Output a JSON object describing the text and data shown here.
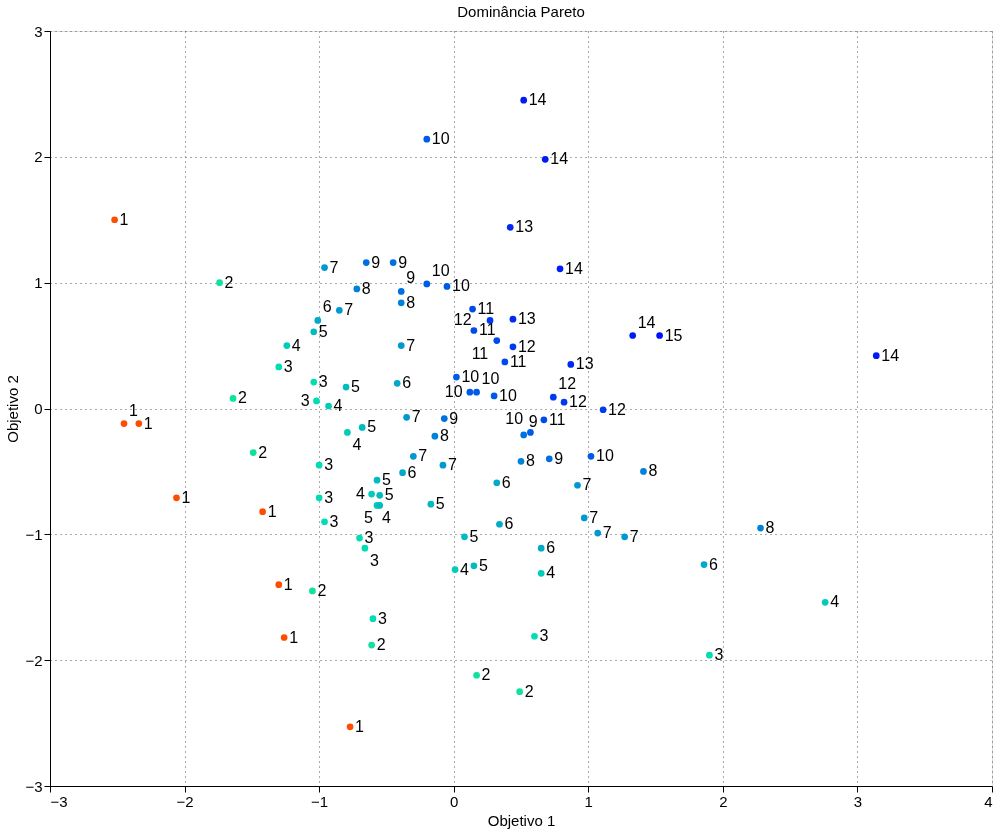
{
  "chart_data": {
    "type": "scatter",
    "title": "Dominância Pareto",
    "xlabel": "Objetivo 1",
    "ylabel": "Objetivo 2",
    "xlim": [
      -3,
      4
    ],
    "ylim": [
      -3,
      3
    ],
    "xticks": [
      -3,
      -2,
      -1,
      0,
      1,
      2,
      3,
      4
    ],
    "yticks": [
      -3,
      -2,
      -1,
      0,
      1,
      2,
      3
    ],
    "grid": true,
    "marker": "circle",
    "series": [
      {
        "name": "1",
        "color": "#ff4d00",
        "x": [
          -2.52,
          -2.45,
          -2.34,
          -2.06,
          -1.42,
          -1.3,
          -1.26,
          -0.77
        ],
        "values": [
          1.5,
          -0.12,
          -0.12,
          -0.71,
          -0.82,
          -1.4,
          -1.82,
          -2.53
        ]
      },
      {
        "name": "2",
        "color": "#10e0a0",
        "x": [
          -1.74,
          -1.64,
          -1.49,
          -1.05,
          -0.61,
          0.17,
          0.49
        ],
        "values": [
          1.0,
          0.08,
          -0.35,
          -1.45,
          -1.88,
          -2.12,
          -2.25
        ]
      },
      {
        "name": "3",
        "color": "#00dcb4",
        "x": [
          -1.3,
          -1.04,
          -1.02,
          -1.0,
          -1.0,
          -0.96,
          -0.7,
          -0.66,
          -0.6,
          0.6,
          1.9
        ],
        "values": [
          0.33,
          0.21,
          0.06,
          -0.45,
          -0.71,
          -0.9,
          -1.03,
          -1.11,
          -1.67,
          -1.81,
          -1.96
        ]
      },
      {
        "name": "4",
        "color": "#00ccb8",
        "x": [
          -1.24,
          -0.93,
          -0.79,
          -0.61,
          -0.57,
          0.01,
          0.65,
          2.76
        ],
        "values": [
          0.5,
          0.02,
          -0.19,
          -0.68,
          -0.77,
          -1.28,
          -1.31,
          -1.54
        ]
      },
      {
        "name": "5",
        "color": "#00bcc0",
        "x": [
          -1.04,
          -0.8,
          -0.68,
          -0.57,
          -0.55,
          -0.55,
          -0.17,
          0.08,
          0.15
        ],
        "values": [
          0.61,
          0.17,
          -0.15,
          -0.57,
          -0.69,
          -0.77,
          -0.76,
          -1.02,
          -1.25
        ]
      },
      {
        "name": "6",
        "color": "#00aac8",
        "x": [
          -1.01,
          -0.42,
          -0.38,
          0.32,
          0.34,
          0.65,
          1.86
        ],
        "values": [
          0.7,
          0.2,
          -0.51,
          -0.59,
          -0.92,
          -1.11,
          -1.24
        ]
      },
      {
        "name": "7",
        "color": "#0098d0",
        "x": [
          -0.96,
          -0.85,
          -0.39,
          -0.35,
          -0.3,
          -0.08,
          0.92,
          0.97,
          1.07,
          1.27
        ],
        "values": [
          1.12,
          0.78,
          0.5,
          -0.07,
          -0.38,
          -0.45,
          -0.61,
          -0.87,
          -0.99,
          -1.02
        ]
      },
      {
        "name": "8",
        "color": "#0082d8",
        "x": [
          -0.72,
          -0.39,
          -0.14,
          0.5,
          1.41,
          2.28
        ],
        "values": [
          0.95,
          0.84,
          -0.22,
          -0.42,
          -0.5,
          -0.95
        ]
      },
      {
        "name": "9",
        "color": "#0070e0",
        "x": [
          -0.65,
          -0.45,
          -0.39,
          -0.07,
          0.52,
          0.71
        ],
        "values": [
          1.16,
          1.16,
          0.93,
          -0.08,
          -0.21,
          -0.4
        ]
      },
      {
        "name": "10",
        "color": "#005ae8",
        "x": [
          -0.2,
          -0.2,
          -0.05,
          0.02,
          0.12,
          0.17,
          0.3,
          0.57,
          1.02
        ],
        "values": [
          2.14,
          0.99,
          0.97,
          0.25,
          0.13,
          0.13,
          0.1,
          -0.19,
          -0.38
        ]
      },
      {
        "name": "11",
        "color": "#004aec",
        "x": [
          0.14,
          0.15,
          0.32,
          0.38,
          0.67
        ],
        "values": [
          0.79,
          0.62,
          0.54,
          0.37,
          -0.09
        ]
      },
      {
        "name": "12",
        "color": "#003af0",
        "x": [
          0.27,
          0.44,
          0.74,
          0.82,
          1.11
        ],
        "values": [
          0.7,
          0.49,
          0.09,
          0.05,
          -0.01
        ]
      },
      {
        "name": "13",
        "color": "#002af4",
        "x": [
          0.42,
          0.44,
          0.87
        ],
        "values": [
          1.44,
          0.71,
          0.35
        ]
      },
      {
        "name": "14",
        "color": "#001af8",
        "x": [
          0.52,
          0.68,
          0.79,
          1.33,
          3.14
        ],
        "values": [
          2.45,
          1.98,
          1.11,
          0.58,
          0.42
        ]
      },
      {
        "name": "15",
        "color": "#0010ff",
        "x": [
          1.53
        ],
        "values": [
          0.58
        ]
      }
    ]
  }
}
